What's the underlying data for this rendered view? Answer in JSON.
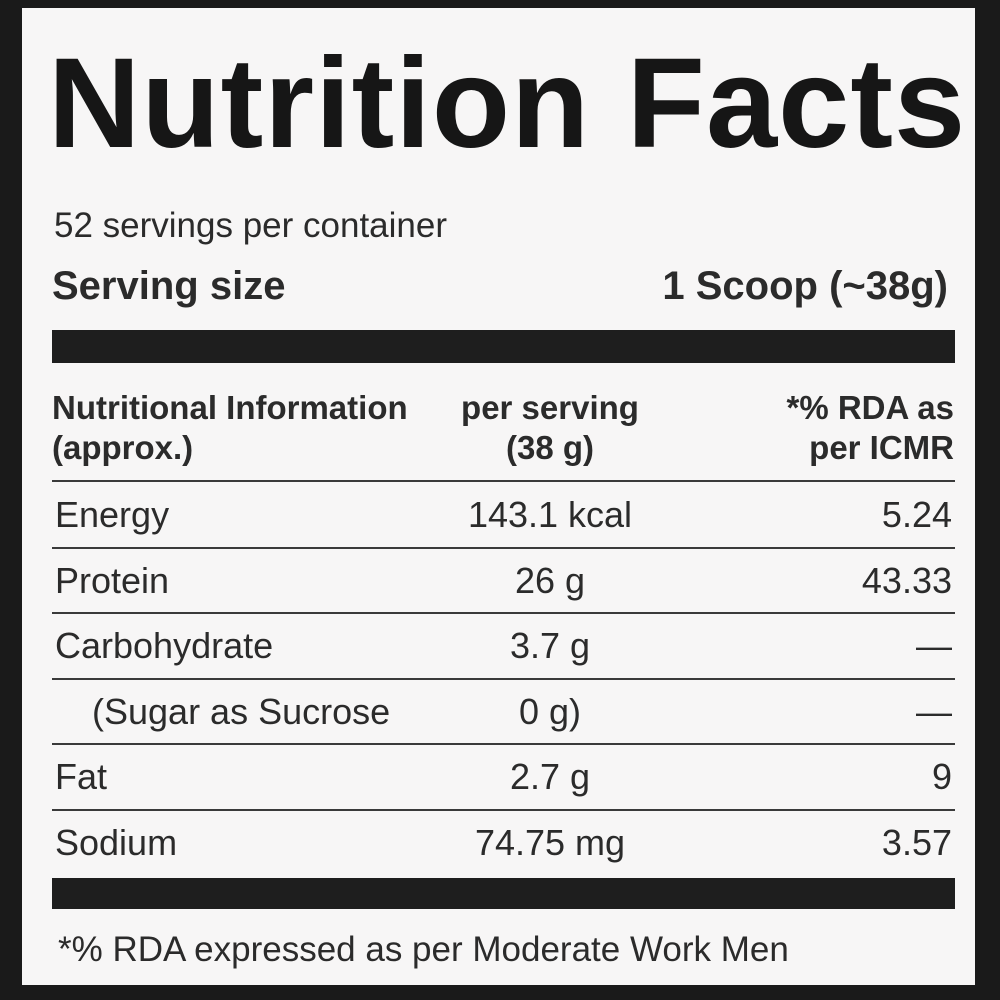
{
  "header": {
    "title": "Nutrition Facts",
    "servings": "52 servings per container",
    "serving_size_label": "Serving size",
    "serving_size_value": "1 Scoop (~38g)"
  },
  "table": {
    "columns": [
      "Nutritional Information (approx.)",
      "per serving (38 g)",
      "*% RDA as per ICMR"
    ],
    "rows": [
      [
        "Energy",
        "143.1 kcal",
        "5.24"
      ],
      [
        "Protein",
        "26 g",
        "43.33"
      ],
      [
        "Carbohydrate",
        "3.7 g",
        "—"
      ],
      [
        "(Sugar as Sucrose",
        "0 g)",
        "—"
      ],
      [
        "Fat",
        "2.7 g",
        "9"
      ],
      [
        "Sodium",
        "74.75 mg",
        "3.57"
      ]
    ]
  },
  "footnote": "*% RDA expressed as per Moderate Work Men"
}
